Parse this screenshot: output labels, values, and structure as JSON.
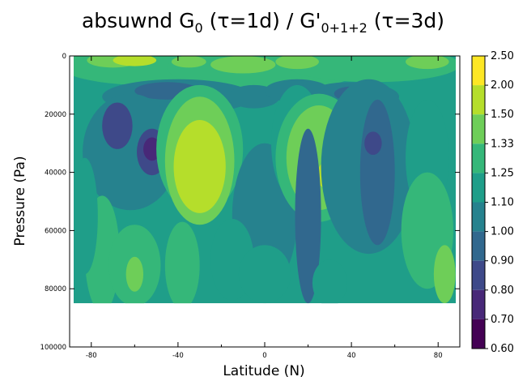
{
  "chart_data": {
    "type": "heatmap",
    "title": {
      "p1": "absuwnd G",
      "s1": "0",
      "p2": " (τ=1d) / G'",
      "s2": "0+1+2",
      "p3": " (τ=3d)"
    },
    "xlabel": "Latitude (N)",
    "ylabel": "Pressure (Pa)",
    "x_ticks": [
      -80,
      -40,
      0,
      40,
      80
    ],
    "x_tick_labels": [
      "-80",
      "-40",
      "0",
      "40",
      "80"
    ],
    "xlim": [
      -90,
      90
    ],
    "y_ticks": [
      0,
      20000,
      40000,
      60000,
      80000,
      100000
    ],
    "y_tick_labels": [
      "0",
      "20000",
      "40000",
      "60000",
      "80000",
      "100000"
    ],
    "ylim": [
      100000,
      0
    ],
    "data_pressure_range": [
      0,
      85000
    ],
    "colorbar": {
      "labels": [
        "2.50",
        "2.00",
        "1.50",
        "1.33",
        "1.25",
        "1.10",
        "1.00",
        "0.90",
        "0.80",
        "0.70",
        "0.60"
      ],
      "colors": [
        "#fde725",
        "#b5de2b",
        "#6ece58",
        "#35b779",
        "#1f9e89",
        "#26828e",
        "#31688e",
        "#3e4989",
        "#482878",
        "#440154"
      ]
    },
    "grid": false,
    "legend_position": "right",
    "field_description": "ratio field by latitude and pressure; values mostly 1.0-1.5, low 0.8-0.9 pockets near 65S, 50S and 45N at 25000-35000 Pa, high 1.5-2.0 near 30S and 25N"
  }
}
